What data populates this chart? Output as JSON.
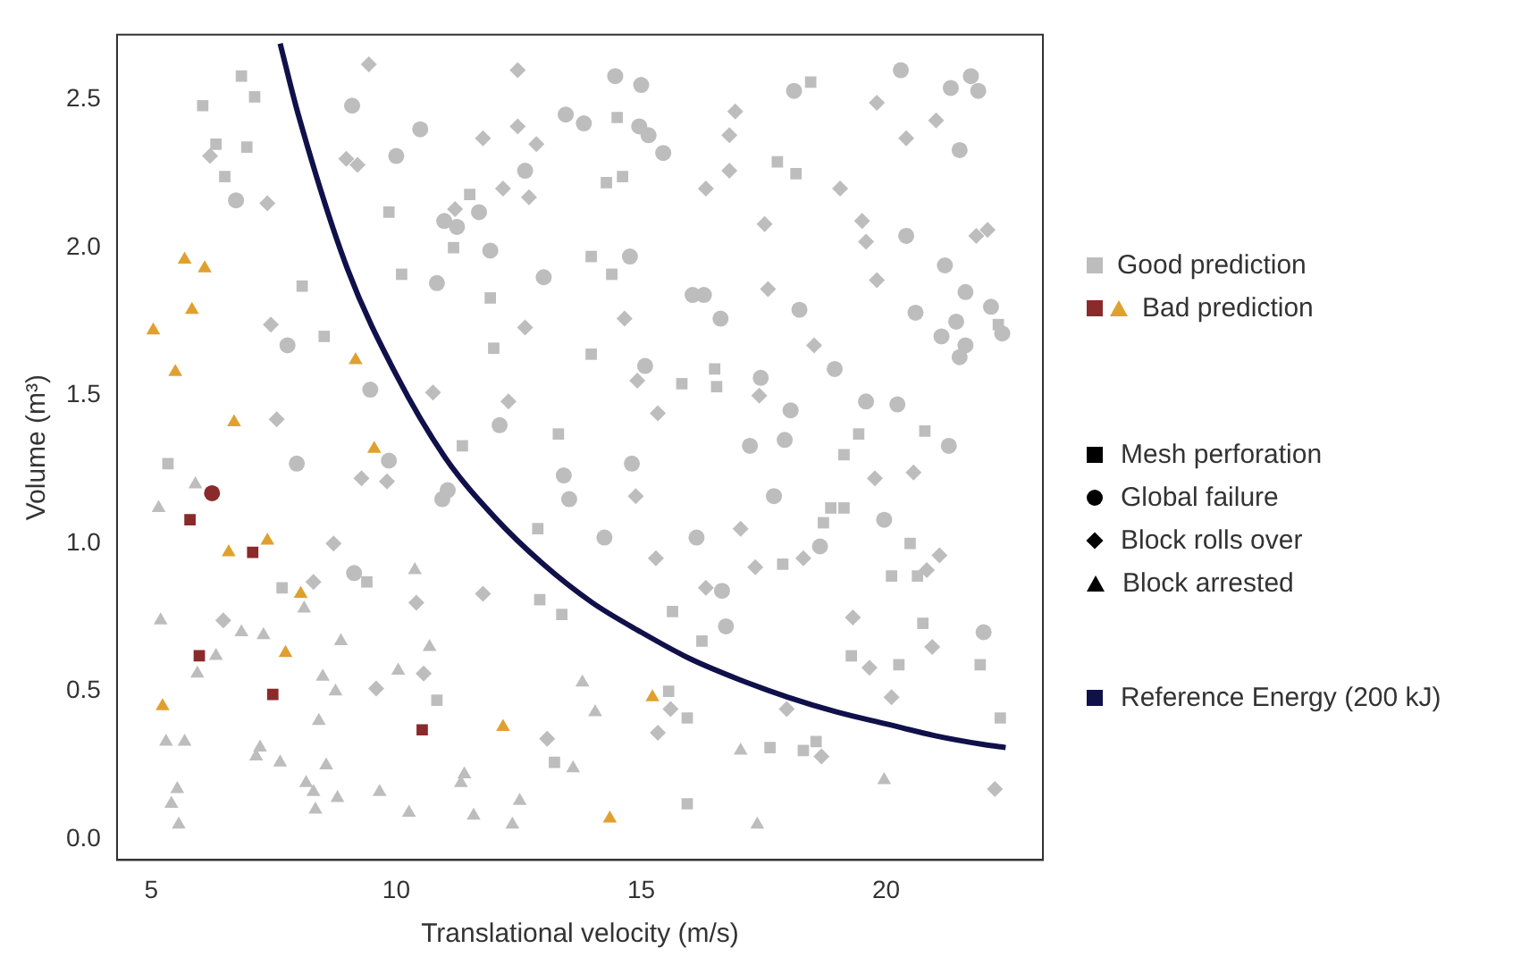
{
  "chart_data": {
    "type": "scatter",
    "xlabel": "Translational velocity (m/s)",
    "ylabel": "Volume (m³)",
    "xlim": [
      4.3,
      23.2
    ],
    "ylim": [
      -0.07,
      2.72
    ],
    "xticks": [
      5,
      10,
      15,
      20
    ],
    "yticks": [
      {
        "value": 0,
        "label": "0.0"
      },
      {
        "value": 0.5,
        "label": "0.5"
      },
      {
        "value": 1,
        "label": "1.0"
      },
      {
        "value": 1.5,
        "label": "1.5"
      },
      {
        "value": 2,
        "label": "2.0"
      },
      {
        "value": 2.5,
        "label": "2.5"
      }
    ],
    "grid": false,
    "legend": "right",
    "annotations": [
      "Mesh perforation",
      "Global failure",
      "Block rolls over",
      "Block arrested"
    ],
    "series": [
      {
        "name": "Good prediction",
        "color": "#bdbdbd",
        "marker": "square",
        "x": [
          6.84,
          6.05,
          7.11,
          6.32,
          6.95,
          6.5,
          9.85,
          11.5,
          11.17,
          10.11,
          8.08,
          8.53,
          11.92,
          11.99,
          13.98,
          13.98,
          11.35,
          13.31,
          5.34,
          14.51,
          18.46,
          17.78,
          18.16,
          14.29,
          14.62,
          14.4,
          15.83,
          16.5,
          16.54,
          19.44,
          20.79,
          19.14,
          22.29,
          7.67,
          9.4,
          12.89,
          12.93,
          13.38,
          10.83,
          13.23,
          18.87,
          19.14,
          18.72,
          20.49,
          17.89,
          20.11,
          20.64,
          15.64,
          16.24,
          20.75,
          19.29,
          20.26,
          21.92,
          15.56,
          15.94,
          22.33,
          17.63,
          18.31,
          18.57,
          15.94
        ],
        "values": [
          2.58,
          2.48,
          2.51,
          2.35,
          2.34,
          2.24,
          2.12,
          2.18,
          2.0,
          1.91,
          1.87,
          1.7,
          1.83,
          1.66,
          1.97,
          1.64,
          1.33,
          1.37,
          1.27,
          2.44,
          2.56,
          2.29,
          2.25,
          2.22,
          2.24,
          1.91,
          1.54,
          1.59,
          1.53,
          1.37,
          1.38,
          1.3,
          1.74,
          0.85,
          0.87,
          1.05,
          0.81,
          0.76,
          0.47,
          0.26,
          1.12,
          1.12,
          1.07,
          1.0,
          0.93,
          0.89,
          0.89,
          0.77,
          0.67,
          0.73,
          0.62,
          0.59,
          0.59,
          0.5,
          0.41,
          0.41,
          0.31,
          0.3,
          0.33,
          0.12
        ]
      },
      {
        "color": "#bdbdbd",
        "marker": "circle",
        "x": [
          9.1,
          10.49,
          10.0,
          13.46,
          13.83,
          12.63,
          6.73,
          11.69,
          10.98,
          11.24,
          11.92,
          10.83,
          13.01,
          7.78,
          9.47,
          12.11,
          7.97,
          9.85,
          14.47,
          15.0,
          14.96,
          15.15,
          15.45,
          18.12,
          20.3,
          21.32,
          21.73,
          21.88,
          21.5,
          14.77,
          20.41,
          21.2,
          16.05,
          16.28,
          16.62,
          18.23,
          21.62,
          22.14,
          20.6,
          21.43,
          21.13,
          21.62,
          21.5,
          22.37,
          15.08,
          17.44,
          18.95,
          18.05,
          19.59,
          20.23,
          17.22,
          17.93,
          21.28,
          14.81,
          10.94,
          11.05,
          13.42,
          13.53,
          9.14,
          17.71,
          19.96,
          14.25,
          16.13,
          18.65,
          16.65,
          16.73,
          21.99
        ],
        "values": [
          2.48,
          2.4,
          2.31,
          2.45,
          2.42,
          2.26,
          2.16,
          2.12,
          2.09,
          2.07,
          1.99,
          1.88,
          1.9,
          1.67,
          1.52,
          1.4,
          1.27,
          1.28,
          2.58,
          2.55,
          2.41,
          2.38,
          2.32,
          2.53,
          2.6,
          2.54,
          2.58,
          2.53,
          2.33,
          1.97,
          2.04,
          1.94,
          1.84,
          1.84,
          1.76,
          1.79,
          1.85,
          1.8,
          1.78,
          1.75,
          1.7,
          1.67,
          1.63,
          1.71,
          1.6,
          1.56,
          1.59,
          1.45,
          1.48,
          1.47,
          1.33,
          1.35,
          1.33,
          1.27,
          1.15,
          1.18,
          1.23,
          1.15,
          0.9,
          1.16,
          1.08,
          1.02,
          1.02,
          0.99,
          0.84,
          0.72,
          0.7
        ]
      },
      {
        "color": "#bdbdbd",
        "marker": "diamond",
        "x": [
          9.44,
          12.48,
          11.77,
          12.48,
          12.86,
          8.98,
          9.21,
          7.37,
          12.18,
          12.71,
          11.2,
          6.2,
          7.44,
          12.63,
          10.75,
          12.29,
          7.56,
          16.92,
          16.8,
          16.8,
          16.32,
          19.06,
          19.81,
          21.02,
          20.41,
          17.52,
          19.51,
          19.59,
          21.84,
          22.07,
          17.59,
          19.81,
          14.66,
          18.53,
          14.92,
          17.41,
          15.34,
          9.29,
          9.81,
          8.72,
          8.31,
          10.41,
          11.77,
          6.47,
          10.56,
          9.59,
          13.08,
          14.89,
          19.77,
          20.56,
          17.03,
          15.3,
          17.33,
          18.31,
          21.09,
          20.83,
          16.32,
          19.32,
          20.94,
          19.66,
          20.11,
          17.97,
          15.6,
          15.34,
          18.68,
          22.22
        ],
        "values": [
          2.62,
          2.6,
          2.37,
          2.41,
          2.35,
          2.3,
          2.28,
          2.15,
          2.2,
          2.17,
          2.13,
          2.31,
          1.74,
          1.73,
          1.51,
          1.48,
          1.42,
          2.46,
          2.38,
          2.26,
          2.2,
          2.2,
          2.49,
          2.43,
          2.37,
          2.08,
          2.09,
          2.02,
          2.04,
          2.06,
          1.86,
          1.89,
          1.76,
          1.67,
          1.55,
          1.5,
          1.44,
          1.22,
          1.21,
          1.0,
          0.87,
          0.8,
          0.83,
          0.74,
          0.56,
          0.51,
          0.34,
          1.16,
          1.22,
          1.24,
          1.05,
          0.95,
          0.92,
          0.95,
          0.96,
          0.91,
          0.85,
          0.75,
          0.65,
          0.58,
          0.48,
          0.44,
          0.44,
          0.36,
          0.28,
          0.17
        ]
      },
      {
        "color": "#bdbdbd",
        "marker": "triangle",
        "x": [
          5.9,
          5.15,
          10.38,
          8.12,
          5.19,
          6.84,
          7.29,
          8.87,
          10.68,
          6.32,
          5.94,
          10.04,
          8.5,
          8.76,
          13.8,
          8.42,
          5.3,
          5.68,
          7.22,
          7.14,
          7.63,
          8.57,
          11.39,
          11.32,
          13.61,
          5.53,
          8.16,
          8.31,
          8.8,
          9.66,
          5.41,
          5.56,
          8.35,
          10.26,
          11.58,
          12.52,
          12.37,
          14.06,
          17.03,
          19.96,
          17.37
        ],
        "values": [
          1.2,
          1.12,
          0.91,
          0.78,
          0.74,
          0.7,
          0.69,
          0.67,
          0.65,
          0.62,
          0.56,
          0.57,
          0.55,
          0.5,
          0.53,
          0.4,
          0.33,
          0.33,
          0.31,
          0.28,
          0.26,
          0.25,
          0.22,
          0.19,
          0.24,
          0.17,
          0.19,
          0.16,
          0.14,
          0.16,
          0.12,
          0.05,
          0.1,
          0.09,
          0.08,
          0.13,
          0.05,
          0.43,
          0.3,
          0.2,
          0.05
        ]
      },
      {
        "name": "Bad prediction",
        "color": "#e0a030",
        "marker": "triangle",
        "x": [
          5.68,
          6.09,
          5.83,
          5.04,
          5.49,
          6.69,
          9.17,
          9.55,
          6.58,
          7.37,
          8.05,
          7.74,
          5.23,
          12.18,
          15.23,
          14.36
        ],
        "values": [
          1.96,
          1.93,
          1.79,
          1.72,
          1.58,
          1.41,
          1.62,
          1.32,
          0.97,
          1.01,
          0.83,
          0.63,
          0.45,
          0.38,
          0.48,
          0.07
        ]
      },
      {
        "color": "#8b2a2a",
        "marker": "square",
        "x": [
          5.79,
          7.07,
          5.98,
          7.48,
          10.53
        ],
        "values": [
          1.08,
          0.97,
          0.62,
          0.49,
          0.37
        ]
      },
      {
        "color": "#8b2a2a",
        "marker": "circle",
        "x": [
          6.24
        ],
        "values": [
          1.17
        ]
      },
      {
        "name": "Reference Energy (200 kJ)",
        "type": "line",
        "color": "#10104a",
        "marker": "none",
        "line_style": "solid",
        "x": [
          7.63,
          8,
          9,
          10,
          11,
          12,
          13,
          14,
          15,
          16,
          17,
          18,
          19,
          20,
          21,
          22,
          22.44
        ],
        "values": [
          2.69,
          2.45,
          1.93,
          1.57,
          1.29,
          1.09,
          0.93,
          0.8,
          0.7,
          0.61,
          0.54,
          0.48,
          0.43,
          0.39,
          0.35,
          0.32,
          0.31
        ]
      }
    ]
  }
}
